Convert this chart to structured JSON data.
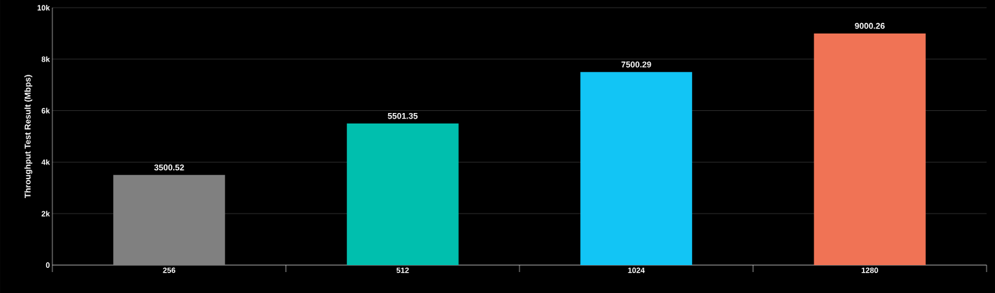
{
  "chart_data": {
    "type": "bar",
    "ylabel": "Throughput Test Result (Mbps)",
    "categories": [
      "256",
      "512",
      "1024",
      "1280"
    ],
    "values": [
      3500.52,
      5501.35,
      7500.29,
      9000.26
    ],
    "colors": [
      "#808080",
      "#00bfae",
      "#12c5f5",
      "#f07355"
    ],
    "ylim": [
      0,
      10000
    ],
    "yticks": [
      0,
      {
        "value": 2000,
        "label": "2k"
      },
      {
        "value": 4000,
        "label": "4k"
      },
      {
        "value": 6000,
        "label": "6k"
      },
      {
        "value": 8000,
        "label": "8k"
      },
      {
        "value": 10000,
        "label": "10k"
      }
    ],
    "grid": "y",
    "data_labels": true
  }
}
